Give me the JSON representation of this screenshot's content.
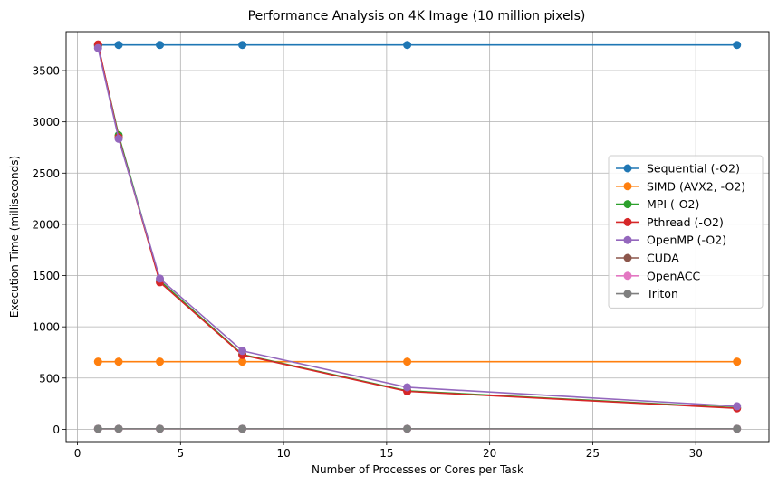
{
  "chart_data": {
    "type": "line",
    "title": "Performance Analysis on 4K Image (10 million pixels)",
    "xlabel": "Number of Processes or Cores per Task",
    "ylabel": "Execution Time (milliseconds)",
    "xlim": [
      -0.55,
      33.55
    ],
    "ylim": [
      -120,
      3880
    ],
    "x_ticks": [
      0,
      5,
      10,
      15,
      20,
      25,
      30
    ],
    "y_ticks": [
      0,
      500,
      1000,
      1500,
      2000,
      2500,
      3000,
      3500
    ],
    "grid": true,
    "legend_position": "center-right",
    "x": [
      1,
      2,
      4,
      8,
      16,
      32
    ],
    "series": [
      {
        "name": "Sequential (-O2)",
        "color": "#1f77b4",
        "values": [
          3750,
          3750,
          3750,
          3750,
          3750,
          3750
        ]
      },
      {
        "name": "SIMD (AVX2, -O2)",
        "color": "#ff7f0e",
        "values": [
          660,
          660,
          660,
          660,
          660,
          660
        ]
      },
      {
        "name": "MPI (-O2)",
        "color": "#2ca02c",
        "values": [
          3740,
          2870,
          1450,
          730,
          375,
          210
        ]
      },
      {
        "name": "Pthread (-O2)",
        "color": "#d62728",
        "values": [
          3755,
          2850,
          1435,
          725,
          370,
          205
        ]
      },
      {
        "name": "OpenMP (-O2)",
        "color": "#9467bd",
        "values": [
          3720,
          2835,
          1470,
          765,
          410,
          225
        ]
      },
      {
        "name": "CUDA",
        "color": "#8c564b",
        "values": [
          5,
          5,
          5,
          5,
          5,
          5
        ]
      },
      {
        "name": "OpenACC",
        "color": "#e377c2",
        "values": [
          5,
          5,
          5,
          5,
          5,
          5
        ]
      },
      {
        "name": "Triton",
        "color": "#7f7f7f",
        "values": [
          5,
          5,
          5,
          5,
          5,
          5
        ]
      }
    ]
  }
}
